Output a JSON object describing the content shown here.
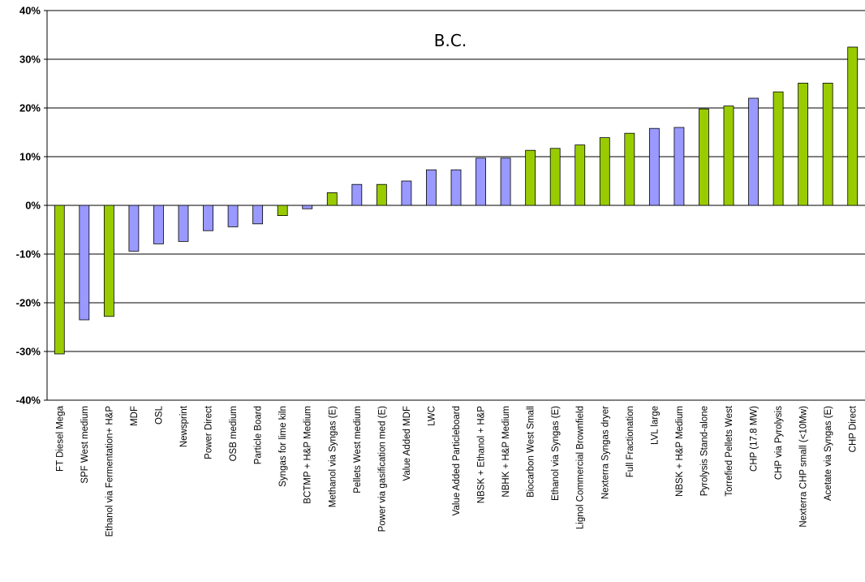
{
  "chart_data": {
    "type": "bar",
    "title": "B.C.",
    "xlabel": "",
    "ylabel": "",
    "ylim": [
      -40,
      40
    ],
    "yticks": [
      -40,
      -30,
      -20,
      -10,
      0,
      10,
      20,
      30,
      40
    ],
    "ytick_labels": [
      "-40%",
      "-30%",
      "-20%",
      "-10%",
      "0%",
      "10%",
      "20%",
      "30%",
      "40%"
    ],
    "grid": true,
    "legend": "none",
    "colors": {
      "green": "#99cc00",
      "purple": "#9999ff",
      "outline": "#000000",
      "grid": "#000000"
    },
    "categories": [
      "FT Diesel Mega",
      "SPF West medium",
      "Ethanol via Fermentation+ H&P",
      "MDF",
      "OSL",
      "Newsprint",
      "Power Direct",
      "OSB medium",
      "Particle Board",
      "Syngas for lime kiln",
      "BCTMP + H&P Medium",
      "Methanol via Syngas (E)",
      "Pellets West medium",
      "Power via gasification med (E)",
      "Value Added MDF",
      "LWC",
      "Value Added Particleboard",
      "NBSK + Ethanol + H&P",
      "NBHK + H&P Medium",
      "Biocarbon West Small",
      "Ethanol via Syngas (E)",
      "Lignol Commercial Brownfield",
      "Nexterra Syngas dryer",
      "Full Fractionation",
      "LVL large",
      "NBSK + H&P Medium",
      "Pyrolysis Stand-alone",
      "Torrefied Pellets West",
      "CHP (17.8 MW)",
      "CHP via Pyrolysis",
      "Nexterra CHP small (<10Mw)",
      "Acetate via Syngas (E)",
      "CHP Direct"
    ],
    "values": [
      -30.5,
      -23.5,
      -22.8,
      -9.4,
      -7.9,
      -7.4,
      -5.2,
      -4.4,
      -3.8,
      -2.1,
      -0.7,
      2.6,
      4.3,
      4.3,
      5.0,
      7.3,
      7.3,
      9.7,
      9.7,
      11.3,
      11.7,
      12.4,
      13.9,
      14.8,
      15.8,
      16.0,
      19.8,
      20.4,
      22.0,
      23.3,
      25.1,
      25.1,
      32.5
    ],
    "bar_colors": [
      "green",
      "purple",
      "green",
      "purple",
      "purple",
      "purple",
      "purple",
      "purple",
      "purple",
      "green",
      "purple",
      "green",
      "purple",
      "green",
      "purple",
      "purple",
      "purple",
      "purple",
      "purple",
      "green",
      "green",
      "green",
      "green",
      "green",
      "purple",
      "purple",
      "green",
      "green",
      "purple",
      "green",
      "green",
      "green",
      "green"
    ]
  }
}
